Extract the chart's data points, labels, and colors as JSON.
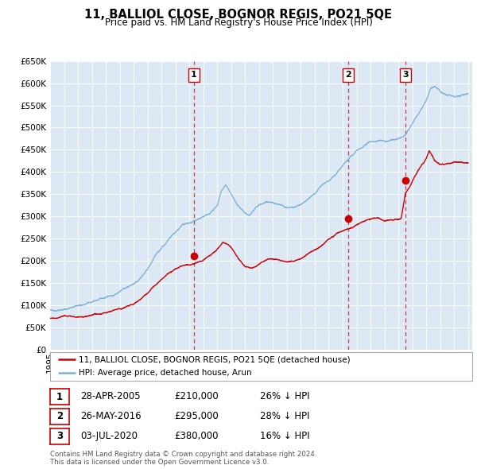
{
  "title": "11, BALLIOL CLOSE, BOGNOR REGIS, PO21 5QE",
  "subtitle": "Price paid vs. HM Land Registry's House Price Index (HPI)",
  "legend_line1": "11, BALLIOL CLOSE, BOGNOR REGIS, PO21 5QE (detached house)",
  "legend_line2": "HPI: Average price, detached house, Arun",
  "footer1": "Contains HM Land Registry data © Crown copyright and database right 2024.",
  "footer2": "This data is licensed under the Open Government Licence v3.0.",
  "transactions": [
    {
      "num": 1,
      "date": "28-APR-2005",
      "price": 210000,
      "hpi_diff": "26% ↓ HPI",
      "year": 2005.32
    },
    {
      "num": 2,
      "date": "26-MAY-2016",
      "price": 295000,
      "hpi_diff": "28% ↓ HPI",
      "year": 2016.4
    },
    {
      "num": 3,
      "date": "03-JUL-2020",
      "price": 380000,
      "hpi_diff": "16% ↓ HPI",
      "year": 2020.5
    }
  ],
  "red_color": "#cc0000",
  "blue_color": "#7bafd4",
  "bg_color": "#dce9f5",
  "plot_bg": "#ffffff",
  "ylim": [
    0,
    650000
  ],
  "xlim_start": 1995.0,
  "xlim_end": 2025.3
}
